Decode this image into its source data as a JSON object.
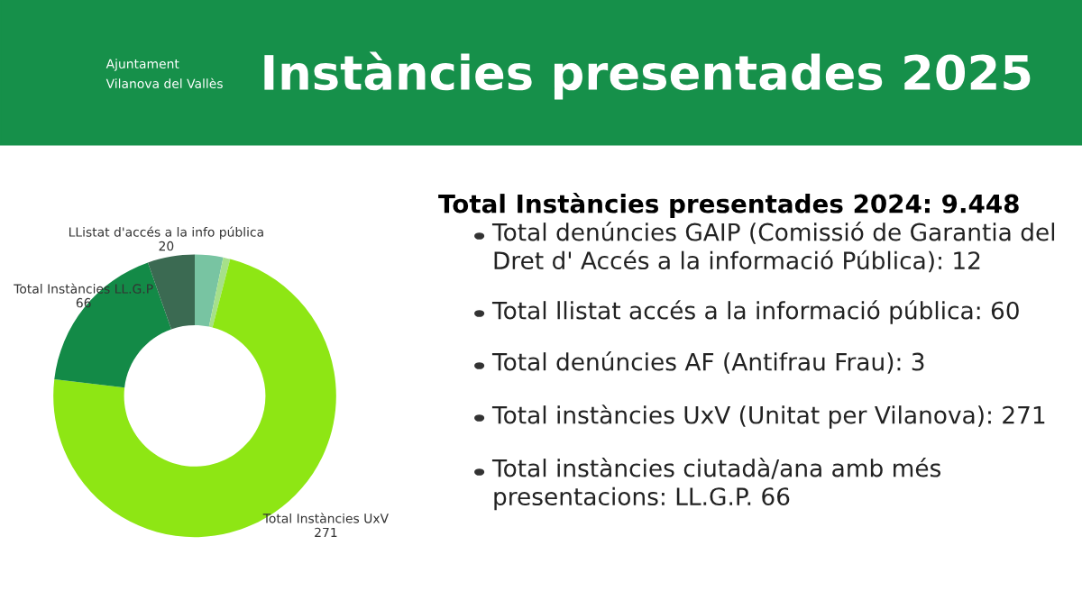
{
  "chart_data": {
    "type": "donut",
    "title": "Instàncies presentades 2025",
    "categories": [
      null,
      null,
      "Total Instàncies UxV",
      "Total Instàncies LL.G.P",
      "LListat d'accés a la info pública"
    ],
    "values": [
      12,
      3,
      271,
      66,
      20
    ],
    "colors": [
      "#78c4a2",
      "#a6e08a",
      "#8ee614",
      "#138a47",
      "#3b6a52"
    ],
    "value_labels": [
      null,
      null,
      "271",
      "66",
      "20"
    ],
    "annotations": [
      "Ajuntament",
      "Vilanova del Vallès",
      "Total Instàncies presentades 2024: 9.448",
      "Total denúncies GAIP (Comissió de Garantia del Dret d' Accés a la informació Pública): 12",
      "Total llistat accés a la informació pública: 60",
      "Total denúncies AF (Antifrau Frau): 3",
      "Total instàncies UxV (Unitat per Vilanova): 271",
      "Total instàncies ciutadà/ana amb més presentacions: LL.G.P. 66"
    ]
  }
}
